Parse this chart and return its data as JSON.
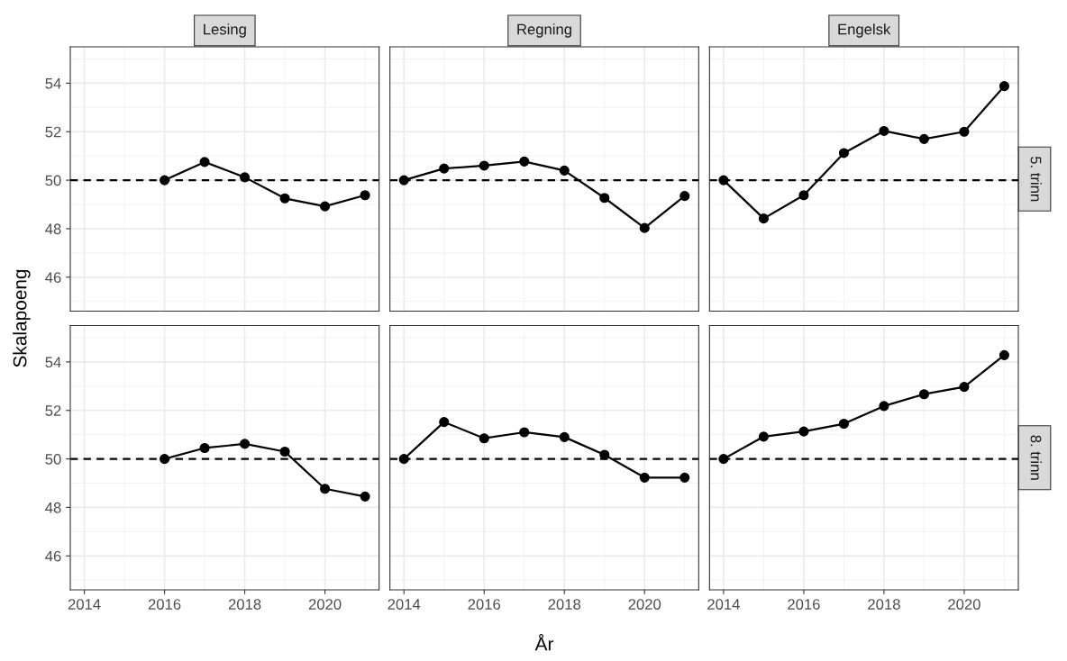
{
  "chart_data": [
    {
      "type": "line",
      "title": "Lesing",
      "x": [
        2016,
        2017,
        2018,
        2019,
        2020,
        2021
      ],
      "series": [
        {
          "color": "#000000",
          "values": [
            50,
            50.75,
            50.12,
            49.25,
            48.92,
            49.38
          ]
        }
      ],
      "xlim": [
        2013.65,
        2021.35
      ],
      "ylim": [
        44.6,
        55.5
      ],
      "xticks": [
        2014,
        2016,
        2018,
        2020
      ],
      "yticks": [
        46,
        48,
        50,
        52,
        54
      ],
      "tick_labels": "y",
      "grid": true,
      "marker": "circle",
      "line_style": "solid",
      "ref_lines": [
        {
          "axis": "y",
          "value": 50,
          "line_style": "dashed",
          "color": "#000000"
        }
      ]
    },
    {
      "type": "line",
      "title": "Regning",
      "x": [
        2014,
        2015,
        2016,
        2017,
        2018,
        2019,
        2020,
        2021
      ],
      "series": [
        {
          "color": "#000000",
          "values": [
            50,
            50.48,
            50.6,
            50.77,
            50.4,
            49.27,
            48.03,
            49.35
          ]
        }
      ],
      "xlim": [
        2013.65,
        2021.35
      ],
      "ylim": [
        44.6,
        55.5
      ],
      "xticks": [
        2014,
        2016,
        2018,
        2020
      ],
      "yticks": [
        46,
        48,
        50,
        52,
        54
      ],
      "tick_labels": false,
      "grid": true,
      "marker": "circle",
      "line_style": "solid",
      "ref_lines": [
        {
          "axis": "y",
          "value": 50,
          "line_style": "dashed",
          "color": "#000000"
        }
      ]
    },
    {
      "type": "line",
      "title": "Engelsk",
      "annotations": [
        "5. trinn"
      ],
      "x": [
        2014,
        2015,
        2016,
        2017,
        2018,
        2019,
        2020,
        2021
      ],
      "series": [
        {
          "color": "#000000",
          "values": [
            50,
            48.42,
            49.38,
            51.12,
            52.03,
            51.7,
            52.0,
            53.88
          ]
        }
      ],
      "xlim": [
        2013.65,
        2021.35
      ],
      "ylim": [
        44.6,
        55.5
      ],
      "xticks": [
        2014,
        2016,
        2018,
        2020
      ],
      "yticks": [
        46,
        48,
        50,
        52,
        54
      ],
      "tick_labels": false,
      "grid": true,
      "marker": "circle",
      "line_style": "solid",
      "ref_lines": [
        {
          "axis": "y",
          "value": 50,
          "line_style": "dashed",
          "color": "#000000"
        }
      ]
    },
    {
      "type": "line",
      "ylabel": "Skalapoeng",
      "x": [
        2016,
        2017,
        2018,
        2019,
        2020,
        2021
      ],
      "series": [
        {
          "color": "#000000",
          "values": [
            50,
            50.45,
            50.62,
            50.3,
            48.77,
            48.45
          ]
        }
      ],
      "xlim": [
        2013.65,
        2021.35
      ],
      "ylim": [
        44.6,
        55.5
      ],
      "xticks": [
        2014,
        2016,
        2018,
        2020
      ],
      "yticks": [
        46,
        48,
        50,
        52,
        54
      ],
      "grid": true,
      "marker": "circle",
      "line_style": "solid",
      "ref_lines": [
        {
          "axis": "y",
          "value": 50,
          "line_style": "dashed",
          "color": "#000000"
        }
      ]
    },
    {
      "type": "line",
      "xlabel": "År",
      "x": [
        2014,
        2015,
        2016,
        2017,
        2018,
        2019,
        2020,
        2021
      ],
      "series": [
        {
          "color": "#000000",
          "values": [
            50,
            51.52,
            50.85,
            51.1,
            50.9,
            50.17,
            49.23,
            49.23
          ]
        }
      ],
      "xlim": [
        2013.65,
        2021.35
      ],
      "ylim": [
        44.6,
        55.5
      ],
      "xticks": [
        2014,
        2016,
        2018,
        2020
      ],
      "yticks": [
        46,
        48,
        50,
        52,
        54
      ],
      "tick_labels": "x",
      "grid": true,
      "marker": "circle",
      "line_style": "solid",
      "ref_lines": [
        {
          "axis": "y",
          "value": 50,
          "line_style": "dashed",
          "color": "#000000"
        }
      ]
    },
    {
      "type": "line",
      "annotations": [
        "8. trinn"
      ],
      "x": [
        2014,
        2015,
        2016,
        2017,
        2018,
        2019,
        2020,
        2021
      ],
      "series": [
        {
          "color": "#000000",
          "values": [
            50,
            50.92,
            51.13,
            51.45,
            52.18,
            52.67,
            52.97,
            54.28
          ]
        }
      ],
      "xlim": [
        2013.65,
        2021.35
      ],
      "ylim": [
        44.6,
        55.5
      ],
      "xticks": [
        2014,
        2016,
        2018,
        2020
      ],
      "yticks": [
        46,
        48,
        50,
        52,
        54
      ],
      "tick_labels": "x",
      "grid": true,
      "marker": "circle",
      "line_style": "solid",
      "ref_lines": [
        {
          "axis": "y",
          "value": 50,
          "line_style": "dashed",
          "color": "#000000"
        }
      ]
    }
  ]
}
